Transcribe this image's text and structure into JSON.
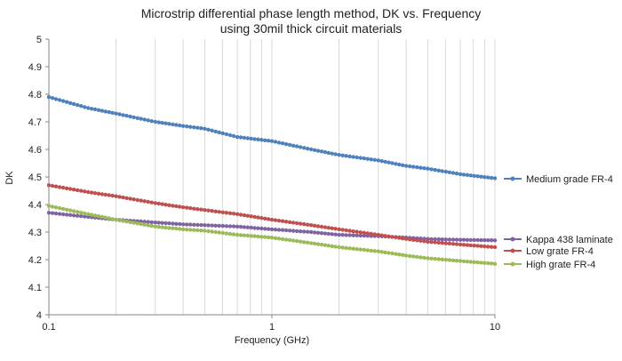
{
  "chart_data": {
    "type": "line",
    "title_lines": [
      "Microstrip differential phase length method, DK vs. Frequency",
      "using 30mil thick circuit materials"
    ],
    "xlabel": "Frequency (GHz)",
    "ylabel": "DK",
    "x_scale": "log",
    "xlim": [
      0.1,
      10
    ],
    "ylim": [
      4,
      5
    ],
    "x_ticks": [
      0.1,
      1,
      10
    ],
    "x_tick_labels": [
      "0.1",
      "1",
      "10"
    ],
    "y_ticks": [
      4,
      4.1,
      4.2,
      4.3,
      4.4,
      4.5,
      4.6,
      4.7,
      4.8,
      4.9,
      5
    ],
    "y_tick_labels": [
      "4",
      "4.1",
      "4.2",
      "4.3",
      "4.4",
      "4.5",
      "4.6",
      "4.7",
      "4.8",
      "4.9",
      "5"
    ],
    "grid": "vertical minor log gridlines",
    "legend_position": "right",
    "series": [
      {
        "name": "Medium grade FR-4",
        "color": "#4F81BD",
        "x": [
          0.1,
          0.15,
          0.2,
          0.3,
          0.4,
          0.5,
          0.7,
          1,
          1.5,
          2,
          3,
          4,
          5,
          7,
          10
        ],
        "y": [
          4.79,
          4.75,
          4.73,
          4.7,
          4.685,
          4.675,
          4.645,
          4.63,
          4.6,
          4.58,
          4.56,
          4.54,
          4.53,
          4.51,
          4.495
        ]
      },
      {
        "name": "Kappa 438 laminate",
        "color": "#8064A2",
        "x": [
          0.1,
          0.15,
          0.2,
          0.3,
          0.4,
          0.5,
          0.7,
          1,
          1.5,
          2,
          3,
          4,
          5,
          7,
          10
        ],
        "y": [
          4.37,
          4.355,
          4.345,
          4.335,
          4.328,
          4.325,
          4.32,
          4.31,
          4.3,
          4.29,
          4.285,
          4.28,
          4.275,
          4.272,
          4.27
        ]
      },
      {
        "name": "Low grate FR-4",
        "color": "#C0504D",
        "x": [
          0.1,
          0.15,
          0.2,
          0.3,
          0.4,
          0.5,
          0.7,
          1,
          1.5,
          2,
          3,
          4,
          5,
          7,
          10
        ],
        "y": [
          4.47,
          4.445,
          4.43,
          4.405,
          4.39,
          4.38,
          4.365,
          4.345,
          4.325,
          4.31,
          4.29,
          4.275,
          4.265,
          4.255,
          4.245
        ]
      },
      {
        "name": "High grate FR-4",
        "color": "#9BBB59",
        "x": [
          0.1,
          0.15,
          0.2,
          0.3,
          0.4,
          0.5,
          0.7,
          1,
          1.5,
          2,
          3,
          4,
          5,
          7,
          10
        ],
        "y": [
          4.395,
          4.365,
          4.345,
          4.32,
          4.31,
          4.305,
          4.29,
          4.28,
          4.26,
          4.245,
          4.23,
          4.215,
          4.205,
          4.195,
          4.185
        ]
      }
    ]
  }
}
